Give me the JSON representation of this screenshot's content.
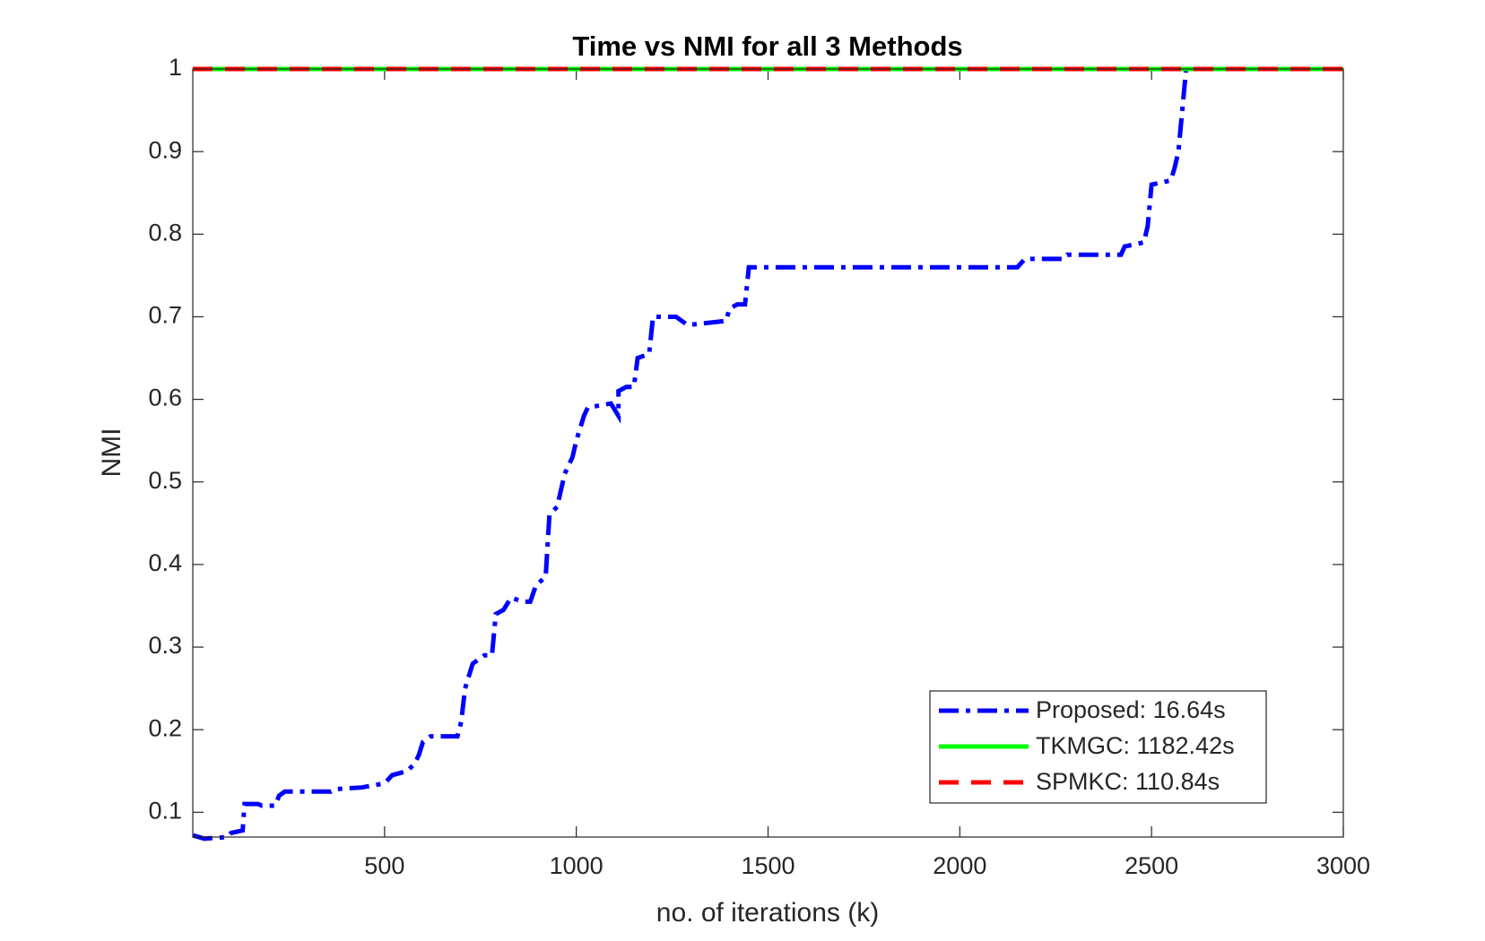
{
  "chart_data": {
    "type": "line",
    "title": "Time vs NMI for all 3 Methods",
    "x_label": "no. of iterations (k)",
    "y_label": "NMI",
    "xlim": [
      0,
      3000
    ],
    "xticks": [
      500,
      1000,
      1500,
      2000,
      2500,
      3000
    ],
    "ylim": [
      0.07,
      1
    ],
    "yticks": [
      0.1,
      0.2,
      0.3,
      0.4,
      0.5,
      0.6,
      0.7,
      0.8,
      0.9,
      1
    ],
    "grid": false,
    "legend_position": "lower-right",
    "series": [
      {
        "name": "Proposed: 16.64s",
        "color": "#0000ff",
        "style": "dashdot",
        "x": [
          1,
          30,
          90,
          100,
          130,
          135,
          170,
          180,
          215,
          225,
          240,
          360,
          370,
          440,
          500,
          520,
          560,
          580,
          590,
          600,
          620,
          690,
          700,
          710,
          730,
          760,
          780,
          790,
          810,
          830,
          860,
          880,
          895,
          920,
          930,
          950,
          970,
          990,
          1000,
          1020,
          1030,
          1090,
          1110,
          1110,
          1130,
          1150,
          1160,
          1190,
          1200,
          1260,
          1290,
          1390,
          1400,
          1420,
          1440,
          1450,
          2150,
          2170,
          2270,
          2280,
          2420,
          2430,
          2480,
          2490,
          2500,
          2550,
          2560,
          2570,
          2580,
          2590
        ],
        "values": [
          0.072,
          0.068,
          0.07,
          0.075,
          0.078,
          0.11,
          0.11,
          0.108,
          0.108,
          0.12,
          0.125,
          0.125,
          0.128,
          0.13,
          0.135,
          0.145,
          0.15,
          0.16,
          0.17,
          0.185,
          0.192,
          0.192,
          0.21,
          0.25,
          0.28,
          0.29,
          0.29,
          0.34,
          0.345,
          0.36,
          0.355,
          0.355,
          0.375,
          0.385,
          0.46,
          0.47,
          0.51,
          0.53,
          0.55,
          0.58,
          0.59,
          0.595,
          0.58,
          0.61,
          0.615,
          0.615,
          0.65,
          0.655,
          0.7,
          0.7,
          0.69,
          0.695,
          0.71,
          0.715,
          0.715,
          0.76,
          0.76,
          0.77,
          0.77,
          0.775,
          0.775,
          0.785,
          0.79,
          0.81,
          0.86,
          0.865,
          0.88,
          0.9,
          0.95,
          1
        ]
      },
      {
        "name": "TKMGC: 1182.42s",
        "color": "#00ff00",
        "style": "solid",
        "x": [
          0,
          3000
        ],
        "values": [
          1,
          1
        ]
      },
      {
        "name": "SPMKC: 110.84s",
        "color": "#ff0000",
        "style": "dashed",
        "x": [
          0,
          3000
        ],
        "values": [
          1,
          1
        ]
      }
    ]
  }
}
